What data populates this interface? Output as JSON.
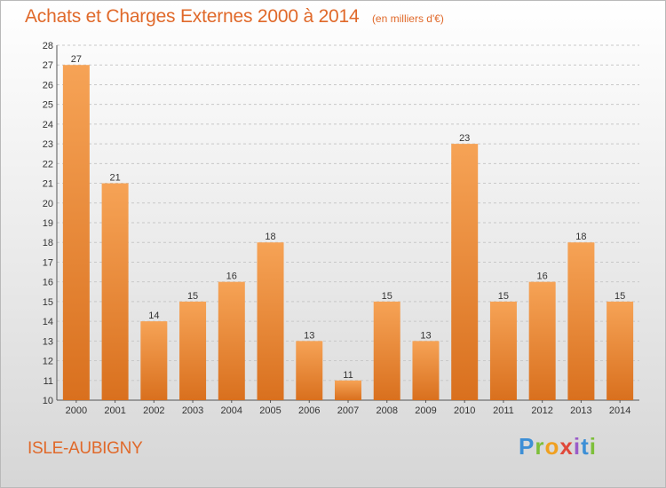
{
  "chart_data": {
    "type": "bar",
    "title": "Achats et Charges Externes 2000 à 2014",
    "unit": "(en milliers d'€)",
    "categories": [
      "2000",
      "2001",
      "2002",
      "2003",
      "2004",
      "2005",
      "2006",
      "2007",
      "2008",
      "2009",
      "2010",
      "2011",
      "2012",
      "2013",
      "2014"
    ],
    "values": [
      27,
      21,
      14,
      15,
      16,
      18,
      13,
      11,
      15,
      13,
      23,
      15,
      16,
      18,
      15
    ],
    "ylim": [
      10,
      28
    ],
    "yticks": [
      10,
      11,
      12,
      13,
      14,
      15,
      16,
      17,
      18,
      19,
      20,
      21,
      22,
      23,
      24,
      25,
      26,
      27,
      28
    ],
    "grid": "horizontal dashed",
    "bar_color": "#f0913a",
    "bar_color_dark": "#d9701e"
  },
  "location": "ISLE-AUBIGNY",
  "brand": {
    "letters": [
      "P",
      "r",
      "o",
      "x",
      "i",
      "t",
      "i"
    ],
    "colors": [
      "#3d8fd6",
      "#7dbf3a",
      "#f0a020",
      "#e0483a",
      "#9a5cc8",
      "#3d8fd6",
      "#7dbf3a"
    ]
  },
  "colors": {
    "accent": "#e0692a"
  }
}
